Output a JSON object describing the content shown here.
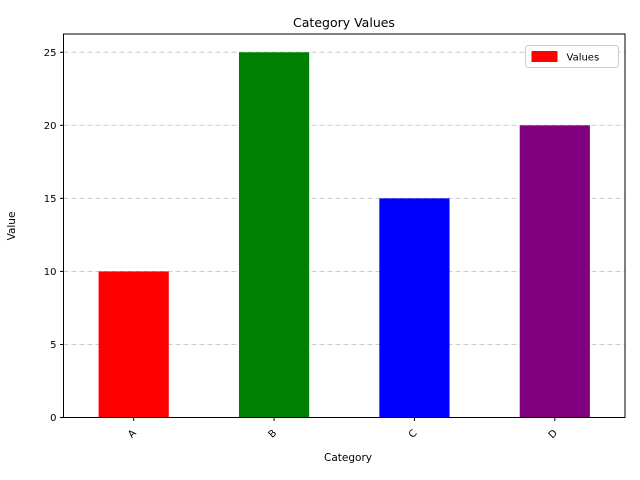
{
  "chart_data": {
    "type": "bar",
    "title": "Category Values",
    "xlabel": "Category",
    "ylabel": "Value",
    "categories": [
      "A",
      "B",
      "C",
      "D"
    ],
    "values": [
      10,
      25,
      15,
      20
    ],
    "bar_colors": [
      "#ff0000",
      "#008000",
      "#0000ff",
      "#800080"
    ],
    "yticks": [
      0,
      5,
      10,
      15,
      20,
      25
    ],
    "ylim": [
      0,
      26.25
    ],
    "grid": "horizontal-dashed",
    "grid_color": "#c8c8c8",
    "x_tick_rotation_deg": 45,
    "legend": {
      "position": "upper-right",
      "entries": [
        {
          "label": "Values",
          "swatch_color": "#ff0000"
        }
      ]
    }
  }
}
